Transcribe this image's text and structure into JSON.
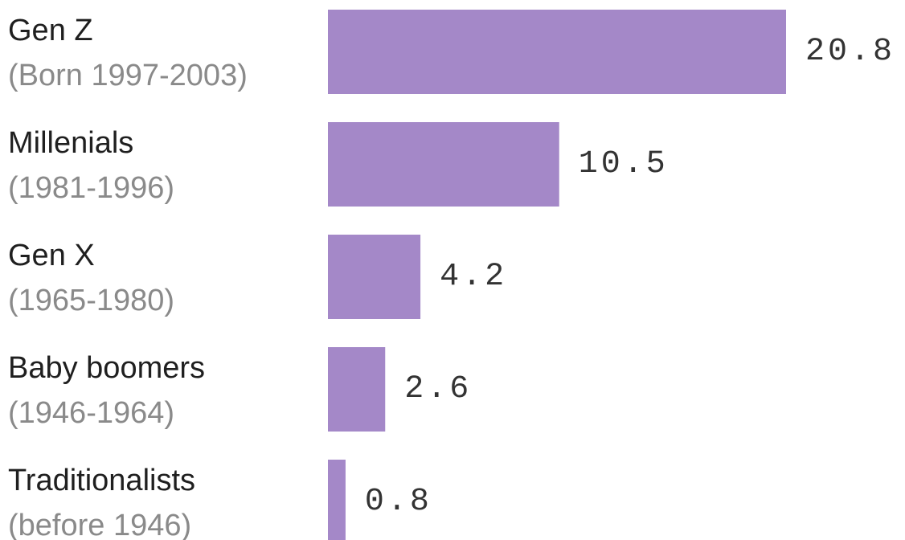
{
  "chart_data": {
    "type": "bar",
    "orientation": "horizontal",
    "categories": [
      {
        "name": "Gen Z",
        "sub": "(Born 1997-2003)"
      },
      {
        "name": "Millenials",
        "sub": "(1981-1996)"
      },
      {
        "name": "Gen X",
        "sub": "(1965-1980)"
      },
      {
        "name": "Baby boomers",
        "sub": "(1946-1964)"
      },
      {
        "name": "Traditionalists",
        "sub": "(before 1946)"
      }
    ],
    "values": [
      20.8,
      10.5,
      4.2,
      2.6,
      0.8
    ],
    "value_labels": [
      "20.8",
      "10.5",
      "4.2",
      "2.6",
      "0.8"
    ],
    "bar_color": "#a488c8",
    "title": "",
    "xlabel": "",
    "ylabel": "",
    "grid": false,
    "legend": "none"
  }
}
